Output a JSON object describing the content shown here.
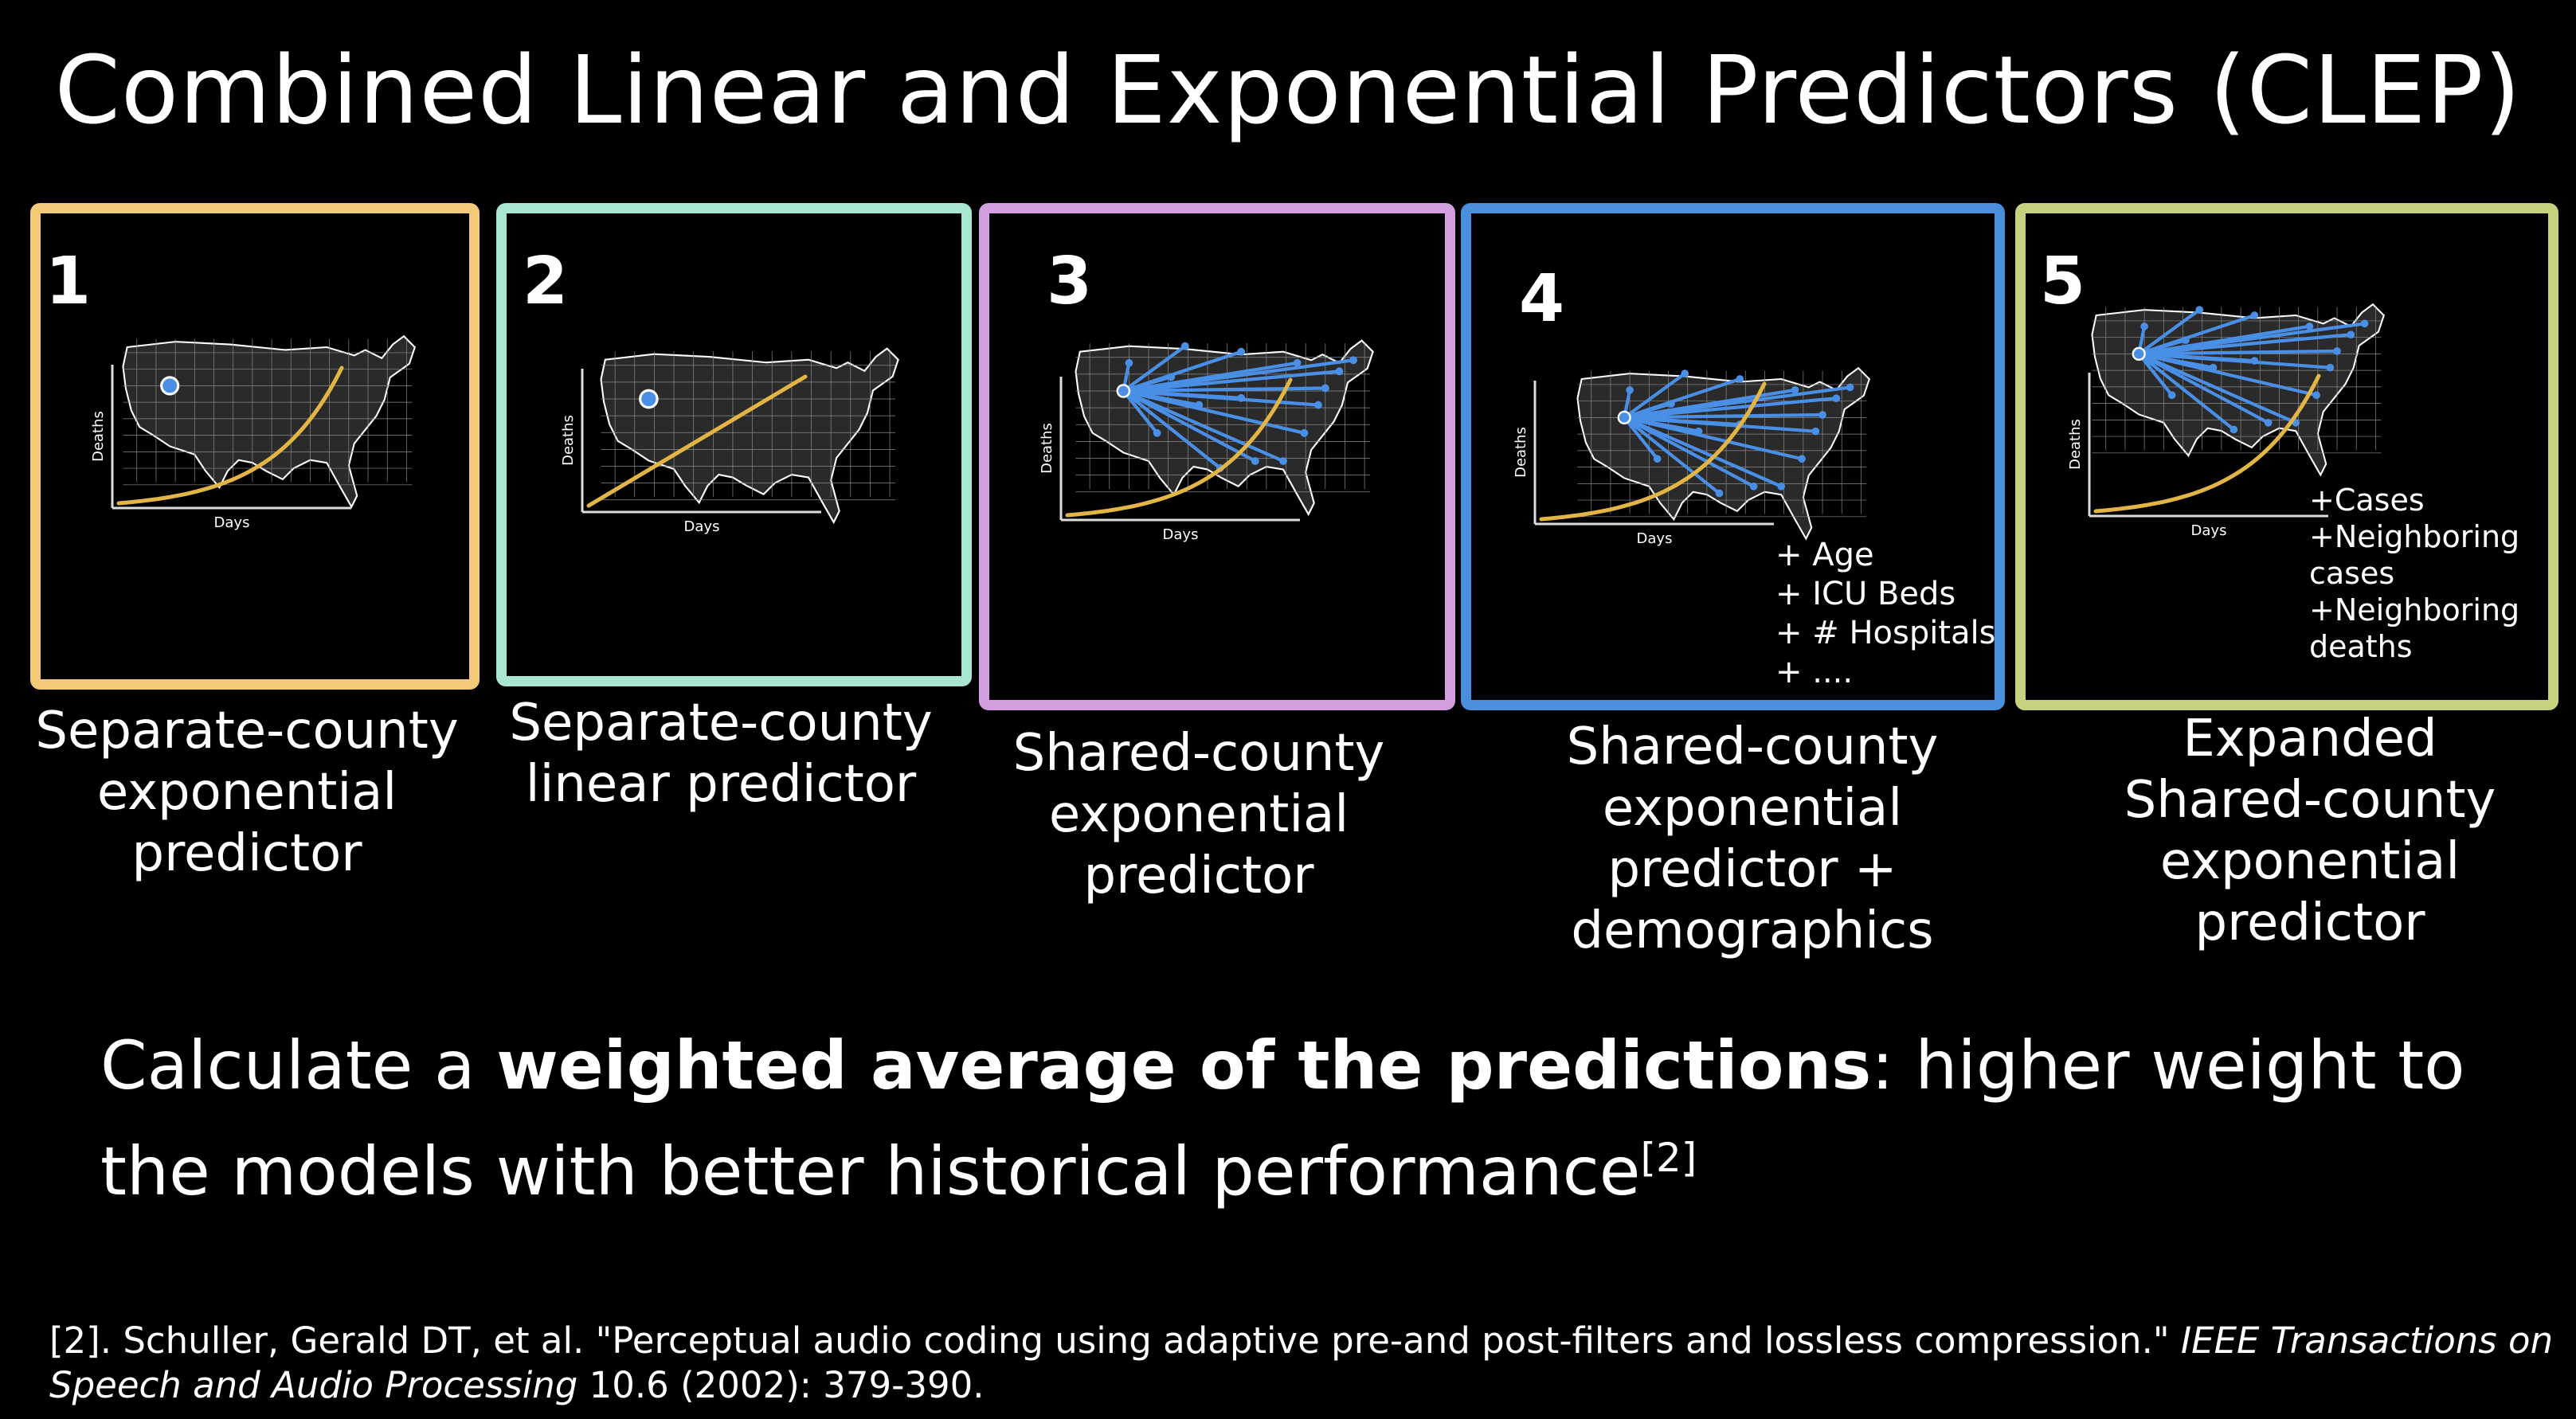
{
  "title": "Combined Linear and Exponential Predictors (CLEP)",
  "panels": [
    {
      "number": "1",
      "color": "#f3c97a",
      "model": "exponential",
      "connections": "none",
      "xlabel": "Days",
      "ylabel": "Deaths",
      "extras": [],
      "caption": [
        "Separate-county",
        "exponential",
        "predictor"
      ]
    },
    {
      "number": "2",
      "color": "#a8e6cf",
      "model": "linear",
      "connections": "none",
      "xlabel": "Days",
      "ylabel": "Deaths",
      "extras": [],
      "caption": [
        "Separate-county",
        "linear predictor"
      ]
    },
    {
      "number": "3",
      "color": "#d39ee0",
      "model": "exponential",
      "connections": "shared",
      "xlabel": "Days",
      "ylabel": "Deaths",
      "extras": [],
      "caption": [
        "Shared-county",
        "exponential",
        "predictor"
      ]
    },
    {
      "number": "4",
      "color": "#4a8fdd",
      "model": "exponential",
      "connections": "shared",
      "xlabel": "Days",
      "ylabel": "Deaths",
      "extras": [
        "+ Age",
        "+ ICU Beds",
        "+ # Hospitals",
        "+ ...."
      ],
      "caption": [
        "Shared-county",
        "exponential",
        "predictor +",
        "demographics"
      ]
    },
    {
      "number": "5",
      "color": "#c7d17e",
      "model": "exponential",
      "connections": "shared",
      "xlabel": "Days",
      "ylabel": "Deaths",
      "extras": [
        "+Cases",
        "+Neighboring",
        "cases",
        "+Neighboring",
        "deaths"
      ],
      "caption": [
        "Expanded",
        "Shared-county",
        "exponential",
        "predictor"
      ]
    }
  ],
  "summary": {
    "pre": "Calculate a ",
    "bold": "weighted average of the predictions",
    "post": ": higher weight to the models with better historical performance",
    "sup": "[2]"
  },
  "reference": {
    "pre": "[2]. Schuller, Gerald DT, et al. \"Perceptual audio coding using adaptive pre-and post-filters and lossless compression.\" ",
    "journal": "IEEE Transactions on Speech and Audio Processing",
    "post": " 10.6 (2002): 379-390."
  },
  "colors": {
    "curve": "#e3b545",
    "map_point": "#4a8fe6",
    "axis": "#dddddd"
  }
}
